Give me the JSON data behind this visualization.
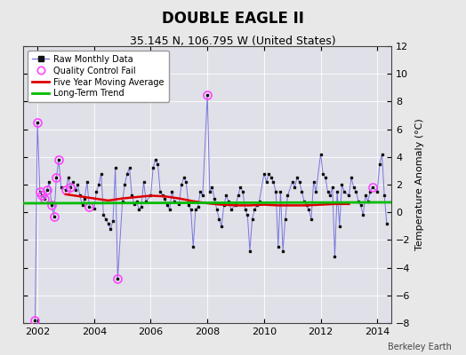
{
  "title": "DOUBLE EAGLE II",
  "subtitle": "35.145 N, 106.795 W (United States)",
  "ylabel": "Temperature Anomaly (°C)",
  "credit": "Berkeley Earth",
  "ylim": [
    -8,
    12
  ],
  "yticks": [
    -8,
    -6,
    -4,
    -2,
    0,
    2,
    4,
    6,
    8,
    10,
    12
  ],
  "xlim_start": 2001.5,
  "xlim_end": 2014.5,
  "xticks": [
    2002,
    2004,
    2006,
    2008,
    2010,
    2012,
    2014
  ],
  "bg_color": "#e8e8e8",
  "plot_bg_color": "#e0e0e8",
  "raw_line_color": "#7777dd",
  "raw_marker_color": "#111111",
  "ma_color": "#dd0000",
  "trend_color": "#00bb00",
  "qc_color": "#ff44ff",
  "raw_data_x": [
    2001.917,
    2002.0,
    2002.083,
    2002.167,
    2002.25,
    2002.333,
    2002.417,
    2002.5,
    2002.583,
    2002.667,
    2002.75,
    2002.833,
    2003.0,
    2003.083,
    2003.167,
    2003.25,
    2003.333,
    2003.417,
    2003.5,
    2003.583,
    2003.667,
    2003.75,
    2003.833,
    2004.0,
    2004.083,
    2004.167,
    2004.25,
    2004.333,
    2004.417,
    2004.5,
    2004.583,
    2004.667,
    2004.75,
    2004.833,
    2005.0,
    2005.083,
    2005.167,
    2005.25,
    2005.333,
    2005.417,
    2005.5,
    2005.583,
    2005.667,
    2005.75,
    2005.833,
    2006.0,
    2006.083,
    2006.167,
    2006.25,
    2006.333,
    2006.417,
    2006.5,
    2006.583,
    2006.667,
    2006.75,
    2006.833,
    2007.0,
    2007.083,
    2007.167,
    2007.25,
    2007.333,
    2007.417,
    2007.5,
    2007.583,
    2007.667,
    2007.75,
    2007.833,
    2008.0,
    2008.083,
    2008.167,
    2008.25,
    2008.333,
    2008.417,
    2008.5,
    2008.583,
    2008.667,
    2008.75,
    2008.833,
    2009.0,
    2009.083,
    2009.167,
    2009.25,
    2009.333,
    2009.417,
    2009.5,
    2009.583,
    2009.667,
    2009.75,
    2009.833,
    2010.0,
    2010.083,
    2010.167,
    2010.25,
    2010.333,
    2010.417,
    2010.5,
    2010.583,
    2010.667,
    2010.75,
    2010.833,
    2011.0,
    2011.083,
    2011.167,
    2011.25,
    2011.333,
    2011.417,
    2011.5,
    2011.583,
    2011.667,
    2011.75,
    2011.833,
    2012.0,
    2012.083,
    2012.167,
    2012.25,
    2012.333,
    2012.417,
    2012.5,
    2012.583,
    2012.667,
    2012.75,
    2012.833,
    2013.0,
    2013.083,
    2013.167,
    2013.25,
    2013.333,
    2013.417,
    2013.5,
    2013.583,
    2013.667,
    2013.75,
    2013.833,
    2014.0,
    2014.083,
    2014.167,
    2014.25,
    2014.333
  ],
  "raw_data_y": [
    -7.8,
    6.5,
    1.5,
    1.2,
    1.0,
    1.6,
    2.2,
    0.5,
    -0.3,
    2.5,
    3.8,
    1.8,
    1.6,
    2.5,
    1.8,
    2.2,
    1.6,
    2.0,
    1.2,
    0.5,
    1.0,
    2.2,
    0.4,
    0.3,
    1.5,
    2.0,
    2.8,
    -0.2,
    -0.5,
    -0.8,
    -1.2,
    -0.6,
    3.2,
    -4.8,
    0.8,
    2.0,
    2.8,
    3.2,
    1.2,
    0.6,
    0.8,
    0.2,
    0.4,
    2.2,
    0.8,
    1.2,
    3.2,
    3.8,
    3.5,
    1.5,
    1.2,
    1.0,
    0.5,
    0.2,
    1.5,
    0.8,
    0.6,
    2.0,
    2.5,
    2.2,
    0.5,
    0.2,
    -2.5,
    0.2,
    0.4,
    1.5,
    1.2,
    8.5,
    1.5,
    1.8,
    1.0,
    0.2,
    -0.5,
    -1.0,
    0.5,
    1.2,
    0.8,
    0.2,
    0.5,
    1.2,
    1.8,
    1.5,
    0.2,
    -0.2,
    -2.8,
    -0.5,
    0.2,
    0.5,
    0.8,
    2.8,
    2.2,
    2.8,
    2.5,
    2.2,
    1.5,
    -2.5,
    1.5,
    -2.8,
    -0.5,
    1.2,
    2.2,
    1.8,
    2.5,
    2.2,
    1.5,
    0.8,
    0.5,
    0.2,
    -0.5,
    2.2,
    1.5,
    4.2,
    2.8,
    2.5,
    1.5,
    1.2,
    1.8,
    -3.2,
    1.5,
    -1.0,
    2.0,
    1.5,
    1.2,
    2.5,
    1.8,
    1.5,
    0.8,
    0.5,
    -0.2,
    1.2,
    0.8,
    1.5,
    1.8,
    1.5,
    3.5,
    4.2,
    1.2,
    -0.8
  ],
  "qc_fail_x": [
    2001.917,
    2002.0,
    2002.083,
    2002.167,
    2002.25,
    2002.333,
    2002.5,
    2002.583,
    2002.667,
    2002.75,
    2003.0,
    2003.167,
    2003.833,
    2004.833,
    2008.0,
    2013.833
  ],
  "qc_fail_y": [
    -7.8,
    6.5,
    1.5,
    1.2,
    1.0,
    1.6,
    0.5,
    -0.3,
    2.5,
    3.8,
    1.6,
    1.8,
    0.4,
    -4.8,
    8.5,
    1.8
  ],
  "ma_x": [
    2003.0,
    2003.5,
    2004.0,
    2004.5,
    2005.0,
    2005.5,
    2006.0,
    2006.5,
    2007.0,
    2007.5,
    2008.0,
    2008.5,
    2009.0,
    2009.5,
    2010.0,
    2010.5,
    2011.0,
    2011.5,
    2012.0,
    2012.5,
    2013.0
  ],
  "ma_y": [
    1.3,
    1.15,
    1.0,
    0.85,
    1.0,
    1.1,
    1.2,
    1.15,
    1.0,
    0.8,
    0.65,
    0.55,
    0.5,
    0.5,
    0.55,
    0.5,
    0.5,
    0.5,
    0.55,
    0.6,
    0.6
  ],
  "trend_x": [
    2001.5,
    2014.5
  ],
  "trend_y": [
    0.65,
    0.72
  ],
  "legend_loc": "upper left",
  "title_fontsize": 12,
  "subtitle_fontsize": 9,
  "tick_labelsize": 8,
  "ylabel_fontsize": 8
}
